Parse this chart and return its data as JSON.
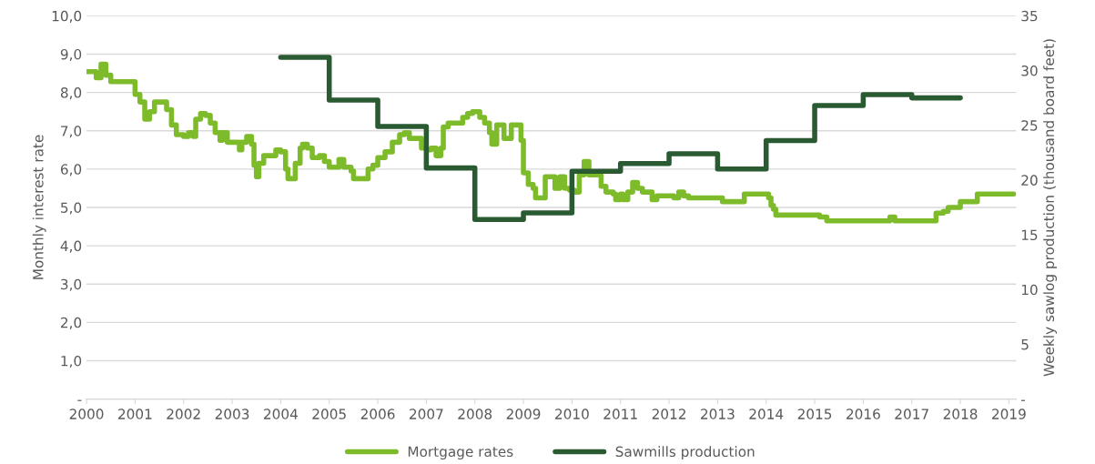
{
  "chart_data": {
    "type": "step",
    "xlim": [
      2000,
      2019.15
    ],
    "xticks": [
      2000,
      2001,
      2002,
      2003,
      2004,
      2005,
      2006,
      2007,
      2008,
      2009,
      2010,
      2011,
      2012,
      2013,
      2014,
      2015,
      2016,
      2017,
      2018,
      2019
    ],
    "ylabel": "Monthly interest rate",
    "y2label": "Weekly sawlog production (thousand board feet)",
    "ylim": [
      0,
      10
    ],
    "yticks": [
      {
        "value": 0,
        "label": "-"
      },
      {
        "value": 1,
        "label": "1,0"
      },
      {
        "value": 2,
        "label": "2,0"
      },
      {
        "value": 3,
        "label": "3,0"
      },
      {
        "value": 4,
        "label": "4,0"
      },
      {
        "value": 5,
        "label": "5,0"
      },
      {
        "value": 6,
        "label": "6,0"
      },
      {
        "value": 7,
        "label": "7,0"
      },
      {
        "value": 8,
        "label": "8,0"
      },
      {
        "value": 9,
        "label": "9,0"
      },
      {
        "value": 10,
        "label": "10,0"
      }
    ],
    "y2lim": [
      0,
      35
    ],
    "y2ticks": [
      {
        "value": 0,
        "label": "-"
      },
      5,
      10,
      15,
      20,
      25,
      30,
      35
    ],
    "grid": "y",
    "legend": "bottom",
    "series": [
      {
        "name": "Mortgage rates",
        "color": "#7dbb2a",
        "x": [
          2000.0,
          2000.15,
          2000.2,
          2000.3,
          2000.4,
          2000.5,
          2001.0,
          2001.1,
          2001.2,
          2001.3,
          2001.4,
          2001.65,
          2001.75,
          2001.85,
          2002.0,
          2002.1,
          2002.2,
          2002.25,
          2002.35,
          2002.45,
          2002.55,
          2002.65,
          2002.75,
          2002.8,
          2002.9,
          2003.15,
          2003.2,
          2003.3,
          2003.4,
          2003.45,
          2003.5,
          2003.55,
          2003.65,
          2003.9,
          2004.0,
          2004.1,
          2004.15,
          2004.3,
          2004.4,
          2004.45,
          2004.55,
          2004.65,
          2004.8,
          2004.9,
          2005.0,
          2005.2,
          2005.3,
          2005.45,
          2005.5,
          2005.8,
          2005.9,
          2006.0,
          2006.15,
          2006.3,
          2006.45,
          2006.55,
          2006.65,
          2006.9,
          2007.0,
          2007.1,
          2007.2,
          2007.3,
          2007.35,
          2007.45,
          2007.75,
          2007.85,
          2007.95,
          2008.1,
          2008.2,
          2008.3,
          2008.35,
          2008.45,
          2008.6,
          2008.75,
          2008.95,
          2009.0,
          2009.1,
          2009.2,
          2009.25,
          2009.45,
          2009.65,
          2009.75,
          2009.85,
          2009.95,
          2010.05,
          2010.15,
          2010.25,
          2010.35,
          2010.6,
          2010.7,
          2010.85,
          2010.9,
          2011.0,
          2011.05,
          2011.15,
          2011.25,
          2011.35,
          2011.45,
          2011.65,
          2011.75,
          2012.1,
          2012.2,
          2012.3,
          2012.4,
          2013.1,
          2013.55,
          2014.05,
          2014.1,
          2014.15,
          2014.2,
          2015.1,
          2015.25,
          2016.55,
          2016.65,
          2017.5,
          2017.65,
          2017.75,
          2018.0,
          2018.35,
          2019.1
        ],
        "values": [
          8.54,
          8.54,
          8.38,
          8.74,
          8.45,
          8.28,
          7.95,
          7.75,
          7.3,
          7.5,
          7.75,
          7.55,
          7.15,
          6.9,
          6.85,
          6.95,
          6.85,
          7.3,
          7.45,
          7.4,
          7.2,
          6.95,
          6.75,
          6.95,
          6.7,
          6.5,
          6.7,
          6.85,
          6.65,
          6.1,
          5.8,
          6.15,
          6.35,
          6.5,
          6.45,
          6.0,
          5.75,
          6.15,
          6.55,
          6.65,
          6.55,
          6.3,
          6.35,
          6.2,
          6.05,
          6.25,
          6.05,
          5.95,
          5.75,
          6.0,
          6.1,
          6.3,
          6.45,
          6.7,
          6.9,
          6.95,
          6.8,
          6.55,
          6.5,
          6.55,
          6.35,
          6.55,
          7.1,
          7.2,
          7.35,
          7.45,
          7.5,
          7.35,
          7.2,
          6.95,
          6.65,
          7.15,
          6.8,
          7.15,
          6.75,
          5.9,
          5.6,
          5.5,
          5.25,
          5.8,
          5.5,
          5.8,
          5.5,
          5.45,
          5.4,
          5.85,
          6.2,
          5.85,
          5.55,
          5.4,
          5.35,
          5.2,
          5.35,
          5.2,
          5.4,
          5.65,
          5.5,
          5.4,
          5.2,
          5.3,
          5.25,
          5.4,
          5.3,
          5.25,
          5.15,
          5.35,
          5.25,
          5.05,
          4.95,
          4.8,
          4.75,
          4.65,
          4.75,
          4.65,
          4.85,
          4.9,
          5.0,
          5.15,
          5.35,
          5.35
        ]
      },
      {
        "name": "Sawmills production",
        "color": "#2a5a32",
        "axis": "y2",
        "x": [
          2004,
          2005,
          2006,
          2007,
          2008,
          2009,
          2010,
          2011,
          2012,
          2013,
          2014,
          2015,
          2016,
          2017,
          2018
        ],
        "values": [
          31.2,
          27.3,
          24.9,
          21.1,
          16.4,
          17.0,
          20.8,
          21.5,
          22.4,
          21.0,
          23.6,
          26.8,
          27.8,
          27.5,
          27.5
        ]
      }
    ]
  }
}
